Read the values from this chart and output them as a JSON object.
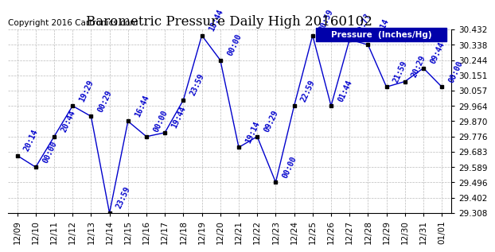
{
  "title": "Barometric Pressure Daily High 20160102",
  "copyright": "Copyright 2016 Cartronics.com",
  "legend_label": "Pressure  (Inches/Hg)",
  "ylim": [
    29.308,
    30.432
  ],
  "ytick_values": [
    29.308,
    29.402,
    29.496,
    29.589,
    29.683,
    29.776,
    29.87,
    29.964,
    30.057,
    30.151,
    30.244,
    30.338,
    30.432
  ],
  "dates": [
    "12/09",
    "12/10",
    "12/11",
    "12/12",
    "12/13",
    "12/14",
    "12/15",
    "12/16",
    "12/17",
    "12/18",
    "12/19",
    "12/20",
    "12/21",
    "12/22",
    "12/23",
    "12/24",
    "12/25",
    "12/26",
    "12/27",
    "12/28",
    "12/29",
    "12/30",
    "12/31",
    "01/01"
  ],
  "values": [
    29.66,
    29.589,
    29.776,
    29.964,
    29.9,
    29.308,
    29.87,
    29.776,
    29.8,
    30.0,
    30.395,
    30.244,
    29.71,
    29.776,
    29.496,
    29.964,
    30.395,
    29.964,
    30.37,
    30.338,
    30.08,
    30.113,
    30.195,
    30.08
  ],
  "annotations": [
    "20:14",
    "00:00",
    "20:44",
    "19:29",
    "00:29",
    "23:59",
    "16:44",
    "00:00",
    "19:44",
    "23:59",
    "18:44",
    "00:00",
    "19:14",
    "09:29",
    "00:00",
    "22:59",
    "20:59",
    "01:44",
    "20:7?",
    "02:14",
    "21:59",
    "20:29",
    "09:44",
    "00:00"
  ],
  "line_color": "#0000cc",
  "marker_color": "#000000",
  "background_color": "#ffffff",
  "grid_color": "#bbbbbb",
  "annotation_color": "#0000cc",
  "annotation_fontsize": 7,
  "tick_fontsize": 7.5,
  "title_fontsize": 12,
  "copyright_fontsize": 7.5,
  "legend_bg": "#0000aa",
  "legend_text_color": "#ffffff"
}
